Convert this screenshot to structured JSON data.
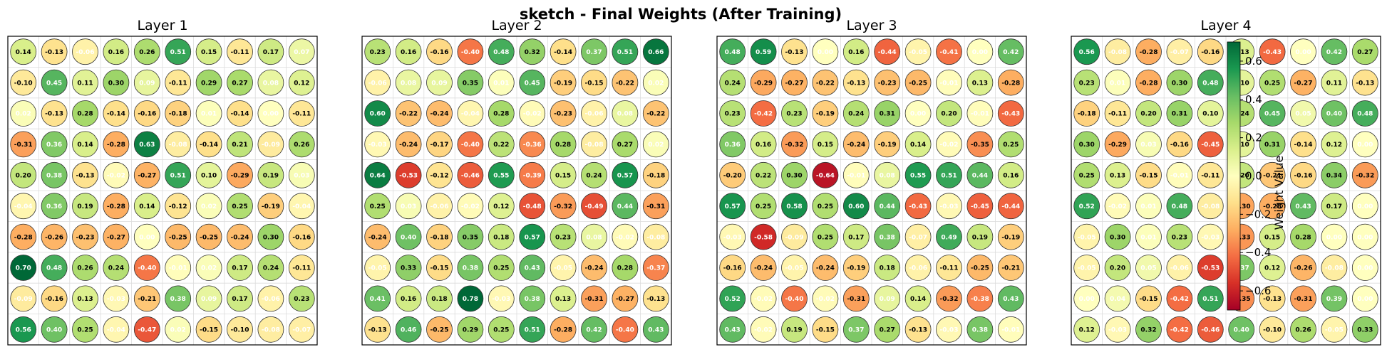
{
  "title": "sketch - Final Weights (After Training)",
  "chart_data": {
    "type": "heatmap",
    "title": "sketch - Final Weights (After Training)",
    "colormap": "RdYlGn",
    "vmin": -0.7,
    "vmax": 0.7,
    "colorbar": {
      "label": "Weight Value",
      "ticks": [
        0.6,
        0.4,
        0.2,
        0.0,
        -0.2,
        -0.4,
        -0.6
      ],
      "tick_labels": [
        "0.6",
        "0.4",
        "0.2",
        "0.0",
        "−0.2",
        "−0.4",
        "−0.6"
      ]
    },
    "panels": [
      {
        "title": "Layer 1",
        "grid": [
          [
            0.14,
            -0.13,
            -0.06,
            0.16,
            0.26,
            0.51,
            0.15,
            -0.11,
            0.17,
            0.07
          ],
          [
            -0.1,
            0.45,
            0.11,
            0.3,
            0.09,
            -0.11,
            0.29,
            0.27,
            0.08,
            0.12
          ],
          [
            0.02,
            -0.13,
            0.28,
            -0.14,
            -0.16,
            -0.18,
            0.01,
            -0.14,
            0.0,
            -0.11
          ],
          [
            -0.31,
            0.36,
            0.14,
            -0.28,
            0.63,
            -0.08,
            -0.14,
            0.21,
            -0.09,
            0.26
          ],
          [
            0.2,
            0.38,
            -0.13,
            -0.02,
            -0.27,
            0.51,
            0.1,
            -0.29,
            0.19,
            0.03
          ],
          [
            -0.04,
            0.36,
            0.19,
            -0.28,
            0.14,
            -0.12,
            0.02,
            0.25,
            -0.19,
            -0.04
          ],
          [
            -0.28,
            -0.26,
            -0.23,
            -0.27,
            0.0,
            -0.25,
            -0.25,
            -0.24,
            0.3,
            -0.16
          ],
          [
            0.7,
            0.48,
            0.26,
            0.24,
            -0.4,
            -0.01,
            0.02,
            0.17,
            0.24,
            -0.11
          ],
          [
            -0.09,
            -0.16,
            0.13,
            -0.03,
            -0.21,
            0.38,
            0.09,
            0.17,
            -0.06,
            0.23
          ],
          [
            0.56,
            0.4,
            0.25,
            -0.04,
            -0.47,
            0.02,
            -0.15,
            -0.1,
            -0.08,
            -0.07
          ]
        ]
      },
      {
        "title": "Layer 2",
        "grid": [
          [
            0.23,
            0.16,
            -0.16,
            -0.4,
            0.48,
            0.32,
            -0.14,
            0.37,
            0.51,
            0.66
          ],
          [
            -0.06,
            0.08,
            0.09,
            0.35,
            0.01,
            0.45,
            -0.19,
            -0.15,
            -0.22,
            0.02
          ],
          [
            0.6,
            -0.22,
            -0.24,
            -0.04,
            0.28,
            -0.02,
            -0.23,
            -0.06,
            0.08,
            -0.22
          ],
          [
            -0.03,
            -0.24,
            -0.17,
            -0.4,
            0.22,
            -0.36,
            0.28,
            -0.08,
            0.27,
            0.02
          ],
          [
            0.64,
            -0.53,
            -0.12,
            -0.46,
            0.55,
            -0.39,
            0.15,
            0.24,
            0.57,
            -0.18
          ],
          [
            0.25,
            0.03,
            -0.06,
            -0.02,
            0.12,
            -0.48,
            -0.32,
            -0.49,
            0.44,
            -0.31
          ],
          [
            -0.24,
            0.4,
            -0.18,
            0.35,
            0.18,
            0.57,
            0.23,
            0.08,
            -0.02,
            -0.08
          ],
          [
            -0.05,
            0.33,
            -0.15,
            0.38,
            0.25,
            0.43,
            -0.05,
            -0.24,
            0.28,
            -0.37
          ],
          [
            0.41,
            0.16,
            0.18,
            0.78,
            -0.03,
            0.38,
            0.13,
            -0.31,
            -0.27,
            -0.13
          ],
          [
            -0.13,
            0.46,
            -0.25,
            0.29,
            0.25,
            0.51,
            -0.28,
            0.42,
            -0.4,
            0.43
          ]
        ]
      },
      {
        "title": "Layer 3",
        "grid": [
          [
            0.48,
            0.59,
            -0.13,
            0.0,
            0.16,
            -0.44,
            -0.05,
            -0.41,
            0.0,
            0.42
          ],
          [
            0.24,
            -0.29,
            -0.27,
            -0.22,
            -0.13,
            -0.23,
            -0.25,
            -0.01,
            0.13,
            -0.28
          ],
          [
            0.23,
            -0.42,
            0.23,
            -0.19,
            0.24,
            0.31,
            0.0,
            0.2,
            -0.01,
            -0.43
          ],
          [
            0.36,
            0.16,
            -0.32,
            0.15,
            -0.24,
            -0.19,
            0.14,
            -0.02,
            -0.35,
            0.25
          ],
          [
            -0.2,
            0.22,
            0.3,
            -0.64,
            -0.01,
            0.08,
            0.55,
            0.51,
            0.44,
            0.16
          ],
          [
            0.57,
            0.25,
            0.58,
            0.25,
            0.6,
            0.44,
            -0.43,
            -0.03,
            -0.45,
            -0.44
          ],
          [
            -0.03,
            -0.58,
            -0.09,
            0.25,
            0.17,
            0.38,
            -0.07,
            0.49,
            0.19,
            -0.19
          ],
          [
            -0.16,
            -0.24,
            -0.05,
            -0.24,
            -0.19,
            0.18,
            -0.06,
            -0.11,
            -0.25,
            -0.21
          ],
          [
            0.52,
            -0.02,
            -0.4,
            -0.02,
            -0.31,
            0.09,
            0.14,
            -0.32,
            -0.38,
            0.43
          ],
          [
            0.43,
            -0.02,
            0.19,
            -0.15,
            0.37,
            0.27,
            -0.13,
            -0.03,
            0.38,
            -0.01
          ]
        ]
      },
      {
        "title": "Layer 4",
        "grid": [
          [
            0.56,
            -0.08,
            -0.28,
            -0.07,
            -0.16,
            0.13,
            -0.43,
            0.0,
            0.42,
            0.27
          ],
          [
            0.23,
            0.01,
            -0.28,
            0.3,
            0.48,
            0.1,
            0.25,
            -0.27,
            0.11,
            -0.13
          ],
          [
            -0.18,
            -0.11,
            0.2,
            0.31,
            0.1,
            0.24,
            0.45,
            0.05,
            0.4,
            0.48
          ],
          [
            0.3,
            -0.29,
            0.03,
            -0.16,
            -0.45,
            0.1,
            0.31,
            -0.14,
            0.12,
            0.0
          ],
          [
            0.25,
            0.13,
            -0.15,
            -0.01,
            -0.11,
            0.2,
            -0.21,
            -0.16,
            0.34,
            -0.32
          ],
          [
            0.52,
            -0.02,
            0.01,
            0.48,
            -0.08,
            -0.3,
            -0.28,
            0.43,
            0.17,
            0.0
          ],
          [
            -0.05,
            0.3,
            0.01,
            0.23,
            -0.03,
            -0.33,
            0.15,
            0.28,
            0.0,
            0.0
          ],
          [
            -0.05,
            0.2,
            0.05,
            -0.06,
            -0.53,
            0.37,
            0.12,
            -0.26,
            -0.08,
            0.0
          ],
          [
            0.0,
            0.04,
            -0.15,
            -0.42,
            0.51,
            -0.35,
            -0.13,
            -0.31,
            0.39,
            0.0
          ],
          [
            0.12,
            -0.03,
            0.32,
            -0.42,
            -0.46,
            0.4,
            -0.1,
            0.26,
            -0.05,
            0.33
          ]
        ]
      }
    ]
  }
}
